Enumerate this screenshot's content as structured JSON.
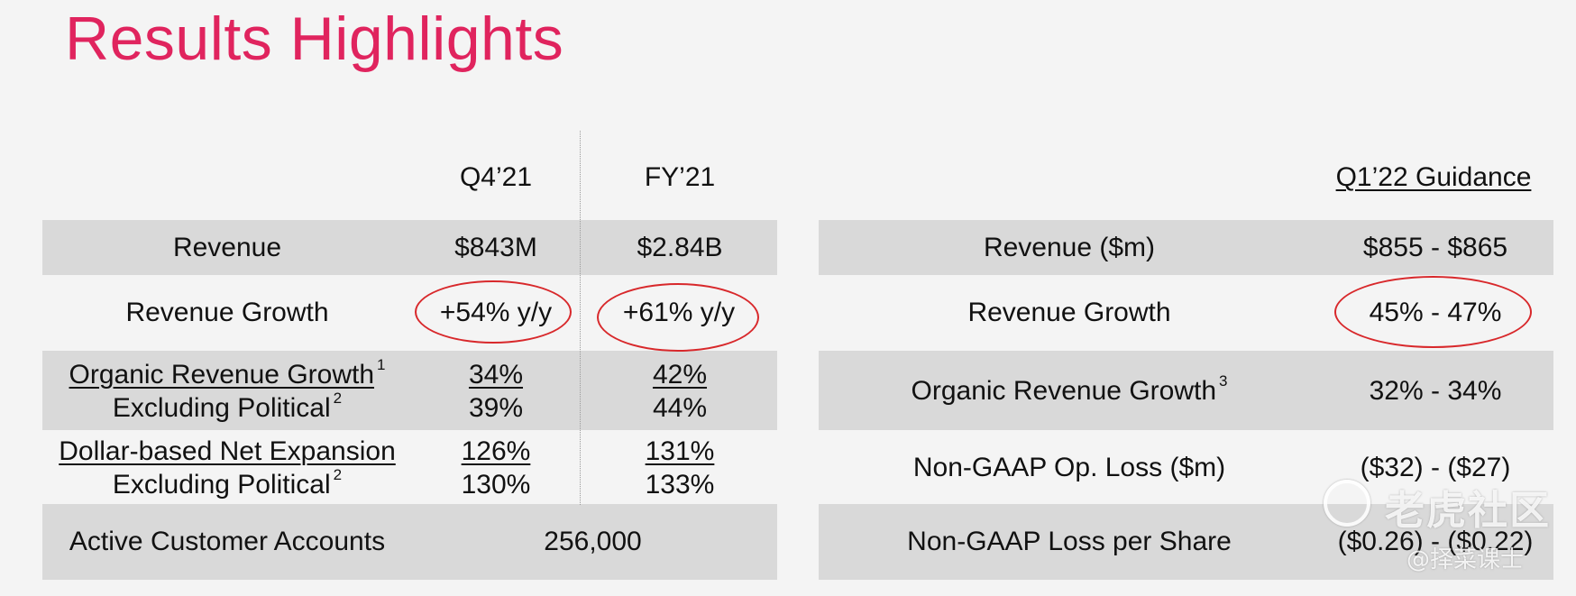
{
  "title": "Results Highlights",
  "left_table": {
    "headers": [
      "Q4’21",
      "FY’21"
    ],
    "rows": {
      "revenue": {
        "label": "Revenue",
        "q4": "$843M",
        "fy": "$2.84B"
      },
      "revenue_growth": {
        "label": "Revenue Growth",
        "q4": "+54% y/y",
        "fy": "+61% y/y"
      },
      "organic": {
        "label": "Organic Revenue Growth",
        "label_sup": "1",
        "sub_label": "Excluding Political",
        "sub_sup": "2",
        "q4": "34%",
        "q4_sub": "39%",
        "fy": "42%",
        "fy_sub": "44%"
      },
      "dbne": {
        "label": "Dollar-based Net Expansion",
        "sub_label": "Excluding Political",
        "sub_sup": "2",
        "q4": "126%",
        "q4_sub": "130%",
        "fy": "131%",
        "fy_sub": "133%"
      },
      "accounts": {
        "label": "Active Customer Accounts",
        "value": "256,000"
      }
    }
  },
  "right_table": {
    "header": "Q1’22 Guidance",
    "rows": [
      {
        "label": "Revenue ($m)",
        "value": "$855 - $865"
      },
      {
        "label": "Revenue Growth",
        "value": "45% - 47%"
      },
      {
        "label": "Organic Revenue Growth",
        "label_sup": "3",
        "value": "32% - 34%"
      },
      {
        "label": "Non-GAAP Op. Loss ($m)",
        "value": "($32) - ($27)"
      },
      {
        "label": "Non-GAAP Loss per Share",
        "value": "($0.26) - ($0.22)"
      }
    ]
  },
  "watermark": {
    "main": "老虎社区",
    "sub": "@择菜课士"
  },
  "colors": {
    "title": "#e0245e",
    "band": "#d9d9d9",
    "highlight_circle": "#d8282b"
  }
}
